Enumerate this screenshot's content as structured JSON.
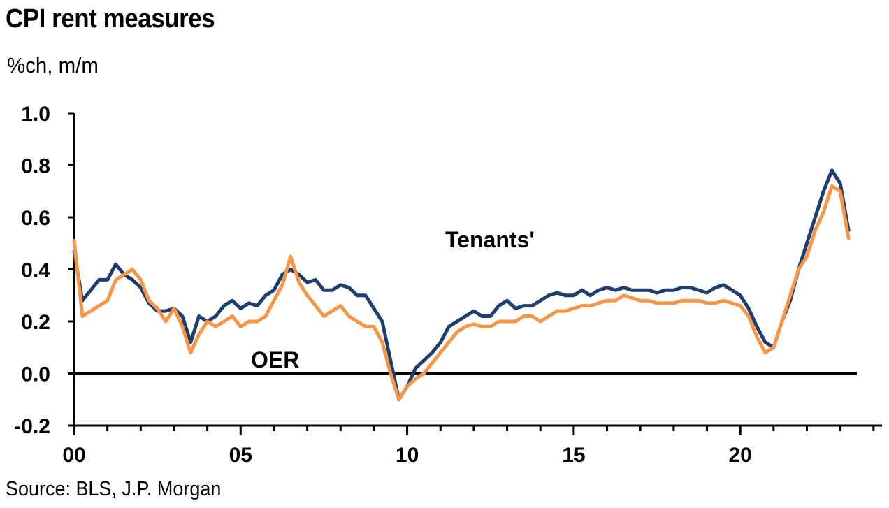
{
  "chart_data": {
    "type": "line",
    "title": "CPI rent measures",
    "subtitle": "%ch, m/m",
    "source": "Source: BLS, J.P. Morgan",
    "ylim": [
      -0.2,
      1.0
    ],
    "xlim": [
      2000,
      2023.5
    ],
    "y_ticks": [
      "1.0",
      "0.8",
      "0.6",
      "0.4",
      "0.2",
      "0.0",
      "-0.2"
    ],
    "x_ticks": [
      "00",
      "05",
      "10",
      "15",
      "20"
    ],
    "grid": false,
    "annotations": [
      {
        "text": "Tenants'",
        "series": "Tenants'"
      },
      {
        "text": "OER",
        "series": "OER"
      }
    ],
    "colors": {
      "Tenants'": "#1f3e6e",
      "OER": "#f79646",
      "zero_line": "#000000"
    },
    "series": [
      {
        "name": "Tenants'",
        "x": [
          2000.0,
          2000.25,
          2000.5,
          2000.75,
          2001.0,
          2001.25,
          2001.5,
          2001.75,
          2002.0,
          2002.25,
          2002.5,
          2002.75,
          2003.0,
          2003.25,
          2003.5,
          2003.75,
          2004.0,
          2004.25,
          2004.5,
          2004.75,
          2005.0,
          2005.25,
          2005.5,
          2005.75,
          2006.0,
          2006.25,
          2006.5,
          2006.75,
          2007.0,
          2007.25,
          2007.5,
          2007.75,
          2008.0,
          2008.25,
          2008.5,
          2008.75,
          2009.0,
          2009.25,
          2009.5,
          2009.75,
          2010.0,
          2010.25,
          2010.5,
          2010.75,
          2011.0,
          2011.25,
          2011.5,
          2011.75,
          2012.0,
          2012.25,
          2012.5,
          2012.75,
          2013.0,
          2013.25,
          2013.5,
          2013.75,
          2014.0,
          2014.25,
          2014.5,
          2014.75,
          2015.0,
          2015.25,
          2015.5,
          2015.75,
          2016.0,
          2016.25,
          2016.5,
          2016.75,
          2017.0,
          2017.25,
          2017.5,
          2017.75,
          2018.0,
          2018.25,
          2018.5,
          2018.75,
          2019.0,
          2019.25,
          2019.5,
          2019.75,
          2020.0,
          2020.25,
          2020.5,
          2020.75,
          2021.0,
          2021.25,
          2021.5,
          2021.75,
          2022.0,
          2022.25,
          2022.5,
          2022.75,
          2023.0,
          2023.25
        ],
        "values": [
          0.47,
          0.28,
          0.32,
          0.36,
          0.36,
          0.42,
          0.38,
          0.36,
          0.33,
          0.27,
          0.24,
          0.24,
          0.25,
          0.22,
          0.12,
          0.22,
          0.2,
          0.22,
          0.26,
          0.28,
          0.25,
          0.27,
          0.26,
          0.3,
          0.32,
          0.38,
          0.4,
          0.38,
          0.35,
          0.36,
          0.32,
          0.32,
          0.34,
          0.33,
          0.3,
          0.3,
          0.25,
          0.2,
          0.05,
          -0.1,
          -0.05,
          0.02,
          0.05,
          0.08,
          0.12,
          0.18,
          0.2,
          0.22,
          0.24,
          0.22,
          0.22,
          0.26,
          0.28,
          0.25,
          0.26,
          0.26,
          0.28,
          0.3,
          0.31,
          0.3,
          0.3,
          0.32,
          0.3,
          0.32,
          0.33,
          0.32,
          0.33,
          0.32,
          0.32,
          0.32,
          0.31,
          0.32,
          0.32,
          0.33,
          0.33,
          0.32,
          0.31,
          0.33,
          0.34,
          0.32,
          0.3,
          0.25,
          0.18,
          0.12,
          0.1,
          0.2,
          0.28,
          0.4,
          0.5,
          0.6,
          0.7,
          0.78,
          0.73,
          0.55
        ]
      },
      {
        "name": "OER",
        "x": [
          2000.0,
          2000.25,
          2000.5,
          2000.75,
          2001.0,
          2001.25,
          2001.5,
          2001.75,
          2002.0,
          2002.25,
          2002.5,
          2002.75,
          2003.0,
          2003.25,
          2003.5,
          2003.75,
          2004.0,
          2004.25,
          2004.5,
          2004.75,
          2005.0,
          2005.25,
          2005.5,
          2005.75,
          2006.0,
          2006.25,
          2006.5,
          2006.75,
          2007.0,
          2007.25,
          2007.5,
          2007.75,
          2008.0,
          2008.25,
          2008.5,
          2008.75,
          2009.0,
          2009.25,
          2009.5,
          2009.75,
          2010.0,
          2010.25,
          2010.5,
          2010.75,
          2011.0,
          2011.25,
          2011.5,
          2011.75,
          2012.0,
          2012.25,
          2012.5,
          2012.75,
          2013.0,
          2013.25,
          2013.5,
          2013.75,
          2014.0,
          2014.25,
          2014.5,
          2014.75,
          2015.0,
          2015.25,
          2015.5,
          2015.75,
          2016.0,
          2016.25,
          2016.5,
          2016.75,
          2017.0,
          2017.25,
          2017.5,
          2017.75,
          2018.0,
          2018.25,
          2018.5,
          2018.75,
          2019.0,
          2019.25,
          2019.5,
          2019.75,
          2020.0,
          2020.25,
          2020.5,
          2020.75,
          2021.0,
          2021.25,
          2021.5,
          2021.75,
          2022.0,
          2022.25,
          2022.5,
          2022.75,
          2023.0,
          2023.25
        ],
        "values": [
          0.51,
          0.22,
          0.24,
          0.26,
          0.28,
          0.36,
          0.38,
          0.4,
          0.36,
          0.28,
          0.25,
          0.2,
          0.25,
          0.18,
          0.08,
          0.15,
          0.2,
          0.18,
          0.2,
          0.22,
          0.18,
          0.2,
          0.2,
          0.22,
          0.28,
          0.34,
          0.45,
          0.35,
          0.3,
          0.26,
          0.22,
          0.24,
          0.26,
          0.22,
          0.2,
          0.18,
          0.18,
          0.12,
          0.0,
          -0.1,
          -0.05,
          -0.02,
          0.0,
          0.04,
          0.08,
          0.12,
          0.16,
          0.18,
          0.19,
          0.18,
          0.18,
          0.2,
          0.2,
          0.2,
          0.22,
          0.22,
          0.2,
          0.22,
          0.24,
          0.24,
          0.25,
          0.26,
          0.26,
          0.27,
          0.28,
          0.28,
          0.3,
          0.29,
          0.28,
          0.28,
          0.27,
          0.27,
          0.27,
          0.28,
          0.28,
          0.28,
          0.27,
          0.27,
          0.28,
          0.27,
          0.26,
          0.22,
          0.14,
          0.08,
          0.1,
          0.2,
          0.3,
          0.4,
          0.45,
          0.55,
          0.62,
          0.72,
          0.7,
          0.52
        ]
      }
    ]
  }
}
